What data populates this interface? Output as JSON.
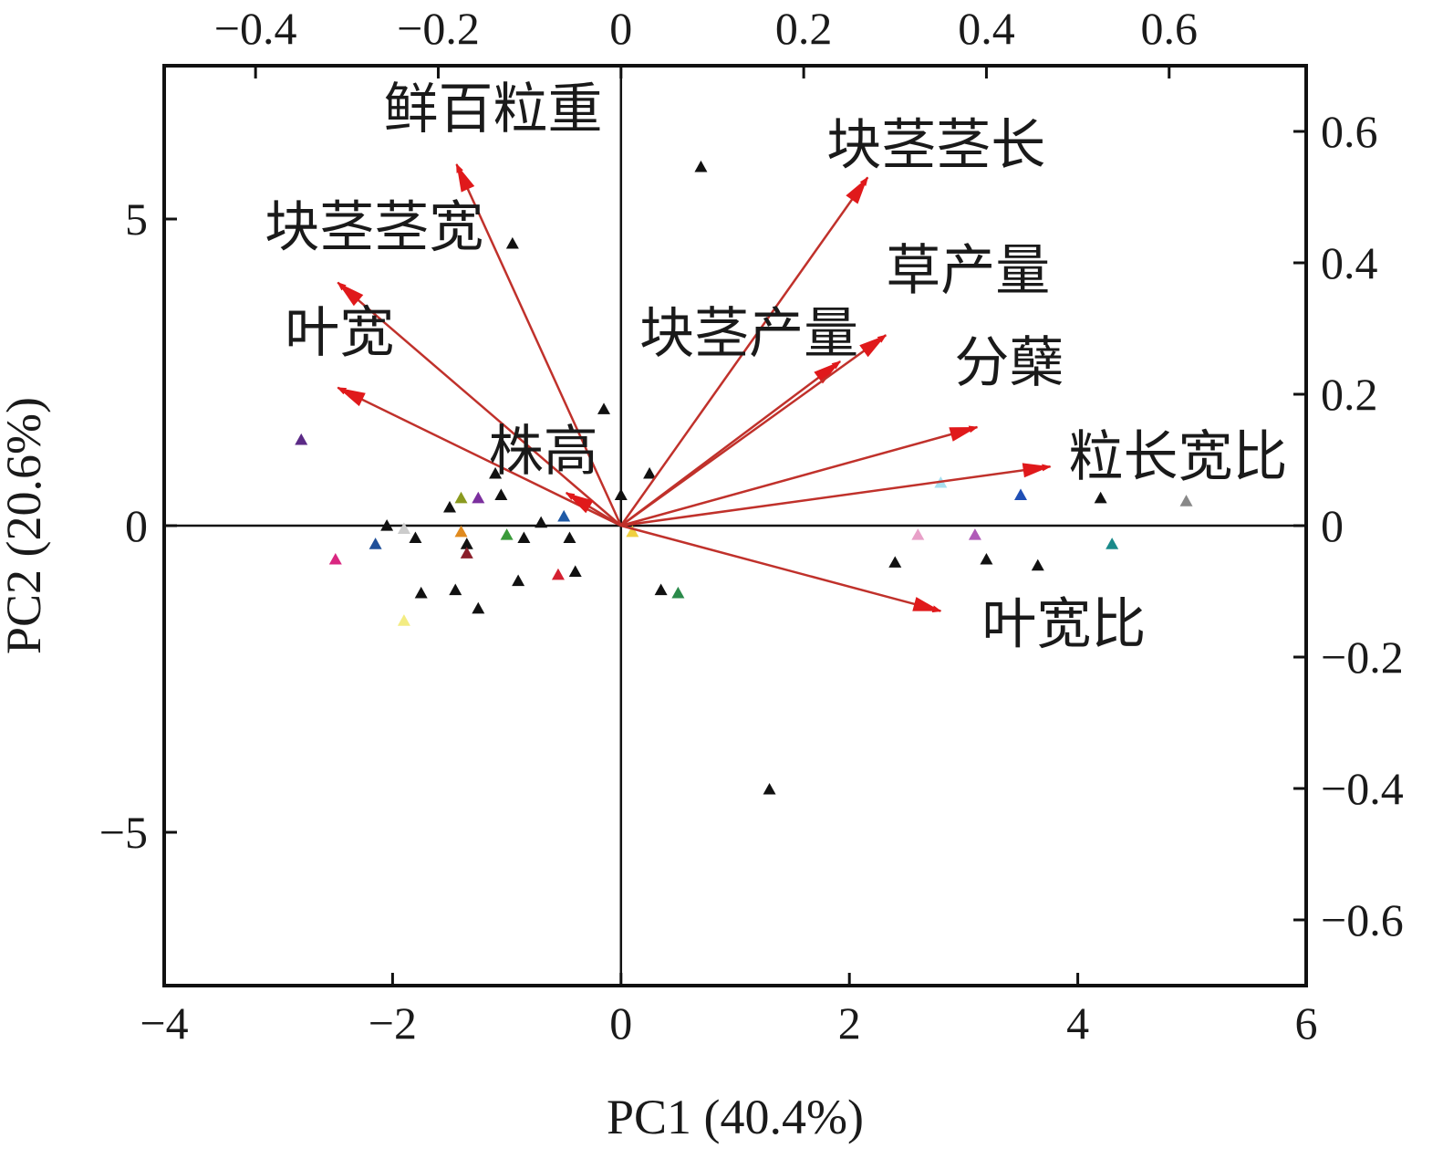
{
  "chart_data": {
    "type": "scatter",
    "subtype": "pca-biplot",
    "title": "",
    "xlabel": "PC1 (40.4%)",
    "ylabel": "PC2 (20.6%)",
    "xlim": [
      -4,
      6
    ],
    "ylim": [
      -7.5,
      7.5
    ],
    "loading_xlim": [
      -0.5,
      0.75
    ],
    "loading_ylim": [
      -0.7,
      0.7
    ],
    "x_ticks": [
      -4,
      -2,
      0,
      2,
      4,
      6
    ],
    "x_tick_labels": [
      "−4",
      "−2",
      "0",
      "2",
      "4",
      "6"
    ],
    "y_ticks": [
      -5,
      0,
      5
    ],
    "y_tick_labels": [
      "−5",
      "0",
      "5"
    ],
    "top_ticks": [
      -0.4,
      -0.2,
      0,
      0.2,
      0.4,
      0.6
    ],
    "top_tick_labels": [
      "−0.4",
      "−0.2",
      "0",
      "0.2",
      "0.4",
      "0.6"
    ],
    "right_ticks": [
      0.6,
      0.4,
      0.2,
      0,
      -0.2,
      -0.4,
      -0.6
    ],
    "right_tick_labels": [
      "0.6",
      "0.4",
      "0.2",
      "0",
      "−0.2",
      "−0.4",
      "−0.6"
    ],
    "grid": false,
    "zero_lines": true,
    "arrow_color": "#c0312b",
    "arrow_head_color": "#e0191b",
    "loadings": [
      {
        "label": "鲜百粒重",
        "x": -0.18,
        "y": 0.55
      },
      {
        "label": "块茎茎宽",
        "x": -0.31,
        "y": 0.37
      },
      {
        "label": "叶宽",
        "x": -0.31,
        "y": 0.21
      },
      {
        "label": "株高",
        "x": -0.06,
        "y": 0.05
      },
      {
        "label": "块茎茎长",
        "x": 0.27,
        "y": 0.53
      },
      {
        "label": "块茎产量",
        "x": 0.24,
        "y": 0.25
      },
      {
        "label": "草产量",
        "x": 0.29,
        "y": 0.29
      },
      {
        "label": "分蘖",
        "x": 0.39,
        "y": 0.15
      },
      {
        "label": "粒长宽比",
        "x": 0.47,
        "y": 0.09
      },
      {
        "label": "叶宽比",
        "x": 0.35,
        "y": -0.13
      }
    ],
    "scores": [
      {
        "x": 0.7,
        "y": 5.85,
        "color": "#111111"
      },
      {
        "x": -0.95,
        "y": 4.6,
        "color": "#111111"
      },
      {
        "x": -2.8,
        "y": 1.4,
        "color": "#5b2a86"
      },
      {
        "x": -0.15,
        "y": 1.9,
        "color": "#111111"
      },
      {
        "x": -1.1,
        "y": 0.85,
        "color": "#111111"
      },
      {
        "x": 0.25,
        "y": 0.85,
        "color": "#111111"
      },
      {
        "x": -1.05,
        "y": 0.5,
        "color": "#111111"
      },
      {
        "x": -1.25,
        "y": 0.45,
        "color": "#7b2f9e"
      },
      {
        "x": -1.5,
        "y": 0.3,
        "color": "#111111"
      },
      {
        "x": -1.4,
        "y": 0.45,
        "color": "#8a9a1f"
      },
      {
        "x": -0.5,
        "y": 0.15,
        "color": "#1f5aa6"
      },
      {
        "x": 0.0,
        "y": 0.5,
        "color": "#111111"
      },
      {
        "x": -0.7,
        "y": 0.05,
        "color": "#111111"
      },
      {
        "x": -2.05,
        "y": 0.0,
        "color": "#111111"
      },
      {
        "x": -1.9,
        "y": -0.05,
        "color": "#cccccc"
      },
      {
        "x": -1.8,
        "y": -0.2,
        "color": "#111111"
      },
      {
        "x": -1.4,
        "y": -0.1,
        "color": "#e08a1e"
      },
      {
        "x": -1.0,
        "y": -0.15,
        "color": "#3a9a3a"
      },
      {
        "x": -0.85,
        "y": -0.2,
        "color": "#111111"
      },
      {
        "x": -0.45,
        "y": -0.2,
        "color": "#111111"
      },
      {
        "x": -1.35,
        "y": -0.3,
        "color": "#111111"
      },
      {
        "x": -1.35,
        "y": -0.45,
        "color": "#8b1e2a"
      },
      {
        "x": -2.15,
        "y": -0.3,
        "color": "#1f4f99"
      },
      {
        "x": -2.5,
        "y": -0.55,
        "color": "#d92680"
      },
      {
        "x": -0.4,
        "y": -0.75,
        "color": "#111111"
      },
      {
        "x": -0.55,
        "y": -0.8,
        "color": "#d42030"
      },
      {
        "x": -0.9,
        "y": -0.9,
        "color": "#111111"
      },
      {
        "x": -1.75,
        "y": -1.1,
        "color": "#111111"
      },
      {
        "x": -1.45,
        "y": -1.05,
        "color": "#111111"
      },
      {
        "x": -1.25,
        "y": -1.35,
        "color": "#111111"
      },
      {
        "x": -1.9,
        "y": -1.55,
        "color": "#f3ec82"
      },
      {
        "x": 0.35,
        "y": -1.05,
        "color": "#111111"
      },
      {
        "x": 0.5,
        "y": -1.1,
        "color": "#2a8a4a"
      },
      {
        "x": 0.1,
        "y": -0.1,
        "color": "#f0d040"
      },
      {
        "x": 1.3,
        "y": -4.3,
        "color": "#111111"
      },
      {
        "x": 2.4,
        "y": -0.6,
        "color": "#111111"
      },
      {
        "x": 2.6,
        "y": -0.15,
        "color": "#e8a0c8"
      },
      {
        "x": 3.1,
        "y": -0.15,
        "color": "#b05ab8"
      },
      {
        "x": 3.2,
        "y": -0.55,
        "color": "#111111"
      },
      {
        "x": 3.65,
        "y": -0.65,
        "color": "#111111"
      },
      {
        "x": 2.8,
        "y": 0.7,
        "color": "#a8e0f0"
      },
      {
        "x": 3.5,
        "y": 0.5,
        "color": "#1f4fb5"
      },
      {
        "x": 4.2,
        "y": 0.45,
        "color": "#111111"
      },
      {
        "x": 4.3,
        "y": -0.3,
        "color": "#1a8a8a"
      },
      {
        "x": 4.95,
        "y": 0.4,
        "color": "#888888"
      }
    ]
  }
}
